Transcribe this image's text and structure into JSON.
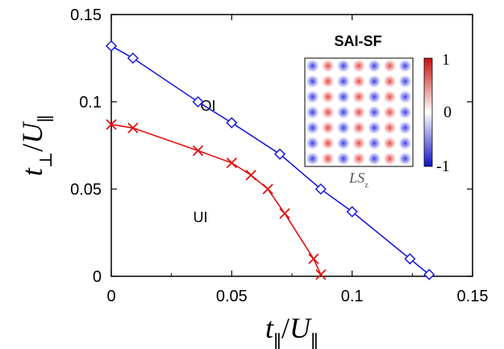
{
  "chart_data": {
    "type": "line",
    "title": "",
    "xlabel": "t_∥/U_∥",
    "ylabel": "t_⊥/U_∥",
    "xlim": [
      0,
      0.15
    ],
    "ylim": [
      0,
      0.15
    ],
    "xticks": [
      "0",
      "0.05",
      "0.1",
      "0.15"
    ],
    "yticks": [
      "0",
      "0.05",
      "0.1",
      "0.15"
    ],
    "xtick_values": [
      0,
      0.05,
      0.1,
      0.15
    ],
    "ytick_values": [
      0,
      0.05,
      0.1,
      0.15
    ],
    "grid": false,
    "series": [
      {
        "marker": "diamond",
        "color": "#1a1adb",
        "x": [
          0.0,
          0.009,
          0.036,
          0.05,
          0.07,
          0.087,
          0.1,
          0.124,
          0.132
        ],
        "y": [
          0.132,
          0.125,
          0.1,
          0.088,
          0.07,
          0.05,
          0.037,
          0.01,
          0.001
        ]
      },
      {
        "marker": "cross",
        "color": "#e01010",
        "x": [
          0.0,
          0.009,
          0.036,
          0.05,
          0.058,
          0.065,
          0.072,
          0.084,
          0.087
        ],
        "y": [
          0.087,
          0.085,
          0.072,
          0.065,
          0.058,
          0.05,
          0.036,
          0.01,
          0.001
        ]
      }
    ],
    "annotations": [
      {
        "text": "OI",
        "x": 0.037,
        "y": 0.095
      },
      {
        "text": "UI",
        "x": 0.034,
        "y": 0.031
      }
    ],
    "inset": {
      "title": "SAI-SF",
      "xlabel": "LS_z",
      "colorbar": {
        "min": -1,
        "max": 1,
        "ticks": [
          "1",
          "0",
          "-1"
        ],
        "colors": [
          "#2020d0",
          "#ffffff",
          "#d02020"
        ]
      },
      "pattern_rows": 7,
      "pattern_cols": 7
    }
  }
}
